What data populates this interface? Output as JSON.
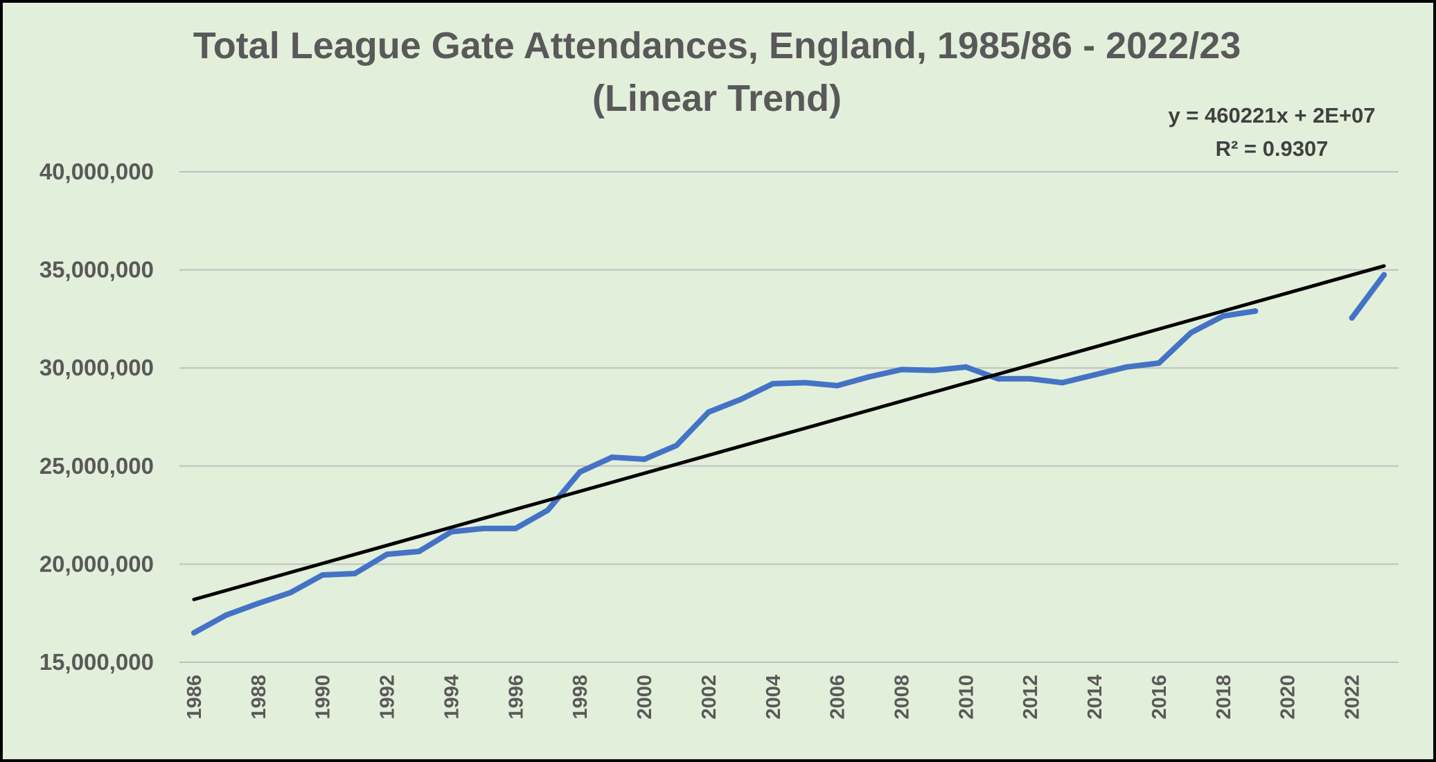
{
  "chart_data": {
    "type": "line",
    "title": "Total League Gate Attendances, England, 1985/86 - 2022/23",
    "subtitle": "(Linear Trend)",
    "xlabel": "",
    "ylabel": "",
    "ylim": [
      15000000,
      40000000
    ],
    "xlim": [
      1986,
      2023
    ],
    "y_ticks": [
      15000000,
      20000000,
      25000000,
      30000000,
      35000000,
      40000000
    ],
    "y_tick_labels": [
      "15,000,000",
      "20,000,000",
      "25,000,000",
      "30,000,000",
      "35,000,000",
      "40,000,000"
    ],
    "x_tick_labels": [
      "1986",
      "1988",
      "1990",
      "1992",
      "1994",
      "1996",
      "1998",
      "2000",
      "2002",
      "2004",
      "2006",
      "2008",
      "2010",
      "2012",
      "2014",
      "2016",
      "2018",
      "2020",
      "2022"
    ],
    "grid": true,
    "series": [
      {
        "name": "Total League Gate Attendances",
        "color": "#4472c4",
        "x": [
          1986,
          1987,
          1988,
          1989,
          1990,
          1991,
          1992,
          1993,
          1994,
          1995,
          1996,
          1997,
          1998,
          1999,
          2000,
          2001,
          2002,
          2003,
          2004,
          2005,
          2006,
          2007,
          2008,
          2009,
          2010,
          2011,
          2012,
          2013,
          2014,
          2015,
          2016,
          2017,
          2018,
          2019,
          2020,
          2021,
          2022,
          2023
        ],
        "values": [
          16500000,
          17400000,
          18000000,
          18550000,
          19450000,
          19520000,
          20500000,
          20650000,
          21650000,
          21820000,
          21820000,
          22750000,
          24700000,
          25450000,
          25350000,
          26050000,
          27750000,
          28400000,
          29200000,
          29250000,
          29100000,
          29550000,
          29920000,
          29880000,
          30050000,
          29450000,
          29450000,
          29250000,
          29650000,
          30050000,
          30250000,
          31800000,
          32650000,
          32900000,
          null,
          null,
          32550000,
          34750000
        ]
      }
    ],
    "trendline": {
      "name": "Linear Trend",
      "color": "#000000",
      "x": [
        1986,
        2023
      ],
      "values": [
        18200000,
        35200000
      ],
      "equation": "y = 460221x + 2E+07",
      "r_squared": "R² = 0.9307"
    }
  },
  "colors": {
    "background": "#e2efda",
    "border": "#000000",
    "gridline": "#bfbfbf",
    "text": "#595959"
  }
}
